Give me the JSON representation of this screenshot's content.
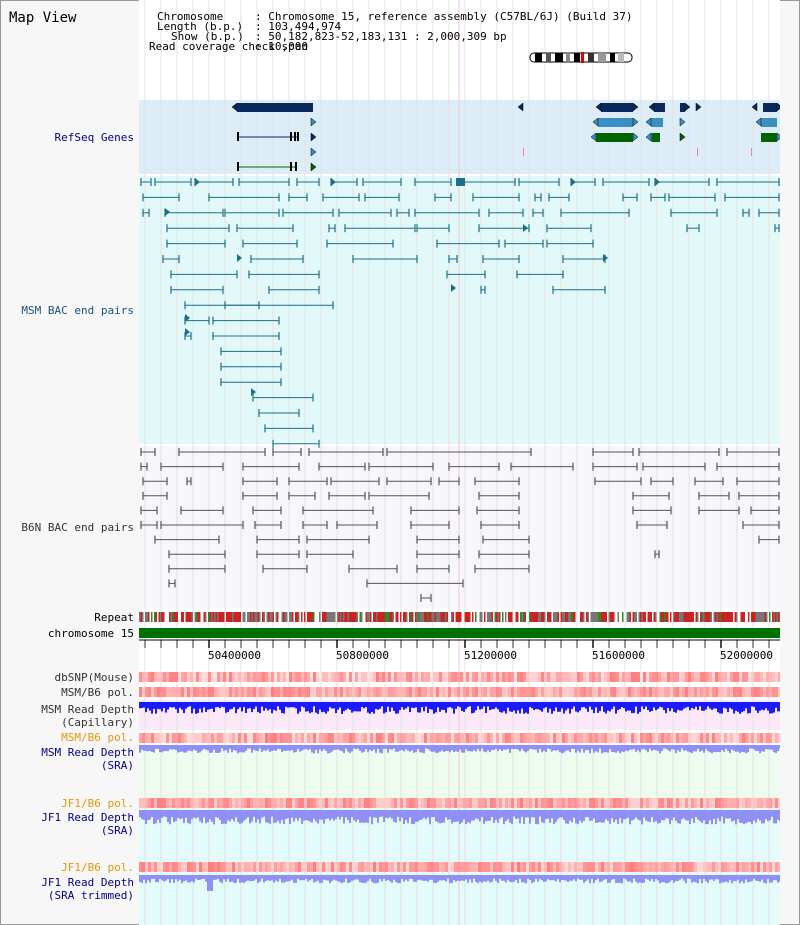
{
  "title": "Map View",
  "header": {
    "chromosome_label": "Chromosome",
    "chromosome_value": ": Chromosome 15, reference assembly (C57BL/6J) (Build 37)",
    "length_label": "Length (b.p.)",
    "length_value": ": 103,494,974",
    "show_label": "Show (b.p.)",
    "show_value": ": 50,182,823-52,183,131 : 2,000,309 bp",
    "coverage_label": "Read coverage check span",
    "coverage_value": ": 10,000"
  },
  "tracks": {
    "refseq": "RefSeq Genes",
    "msm_bac": "MSM BAC end pairs",
    "b6n_bac": "B6N BAC end pairs",
    "repeat": "Repeat",
    "chromosome": "chromosome 15",
    "dbsnp": "dbSNP(Mouse)",
    "msm_b6_pol": "MSM/B6 pol.",
    "msm_rd_cap_1": "MSM Read Depth",
    "msm_rd_cap_2": "(Capillary)",
    "msm_b6_pol_2": "MSM/B6 pol.",
    "msm_rd_sra_1": "MSM Read Depth",
    "msm_rd_sra_2": "(SRA)",
    "jf1_pol_1": "JF1/B6 pol.",
    "jf1_rd_sra_1": "JF1 Read Depth",
    "jf1_rd_sra_2": "(SRA)",
    "jf1_pol_2": "JF1/B6 pol.",
    "jf1_rd_trim_1": "JF1 Read Depth",
    "jf1_rd_trim_2": "(SRA trimmed)"
  },
  "axis_ticks": [
    "50400000",
    "50800000",
    "51200000",
    "51600000",
    "52000000"
  ],
  "colors": {
    "refseq_bg": "#dcedf8",
    "msm_bg": "#e3f8f8",
    "b6n_bg": "#f7f7fb",
    "gene_dark": "#0a2a5e",
    "gene_mid": "#3b8fc2",
    "gene_green": "#006400",
    "msm_line": "#1d6f86",
    "b6n_line": "#555555",
    "chrom_green": "#007000",
    "pol_red": "#ff6b6b",
    "depth_blue": "#1a1aff",
    "depth_light": "#8f8ff5",
    "orange_label": "#e8960a",
    "navy_label": "#00008b",
    "teal_label": "#1a4f7f"
  }
}
